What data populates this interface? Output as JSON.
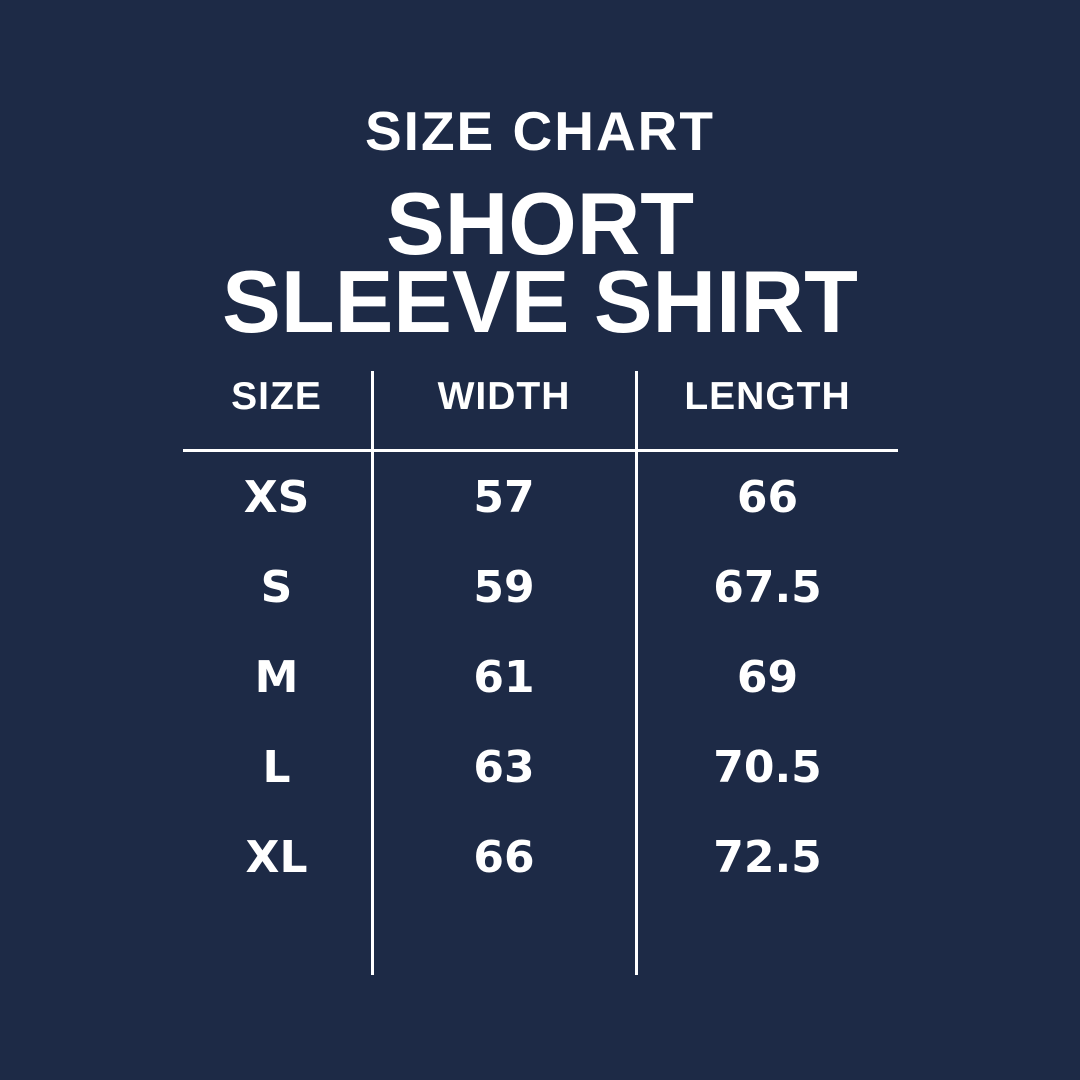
{
  "page": {
    "background_color": "#1d2a46",
    "text_color": "#ffffff",
    "line_color": "#ffffff"
  },
  "header": {
    "kicker": "SIZE CHART",
    "title_line1": "SHORT",
    "title_line2": "SLEEVE SHIRT"
  },
  "table": {
    "columns": [
      "SIZE",
      "WIDTH",
      "LENGTH"
    ],
    "rows": [
      {
        "size": "XS",
        "width": "57",
        "length": "66"
      },
      {
        "size": "S",
        "width": "59",
        "length": "67.5"
      },
      {
        "size": "M",
        "width": "61",
        "length": "69"
      },
      {
        "size": "L",
        "width": "63",
        "length": "70.5"
      },
      {
        "size": "XL",
        "width": "66",
        "length": "72.5"
      }
    ]
  },
  "chart_data": {
    "type": "table",
    "title": "SIZE CHART — SHORT SLEEVE SHIRT",
    "columns": [
      "SIZE",
      "WIDTH",
      "LENGTH"
    ],
    "rows": [
      [
        "XS",
        57,
        66
      ],
      [
        "S",
        59,
        67.5
      ],
      [
        "M",
        61,
        69
      ],
      [
        "L",
        63,
        70.5
      ],
      [
        "XL",
        66,
        72.5
      ]
    ],
    "layout": {
      "header_rule": true,
      "column_dividers": true,
      "background": "#1d2a46",
      "foreground": "#ffffff"
    }
  }
}
